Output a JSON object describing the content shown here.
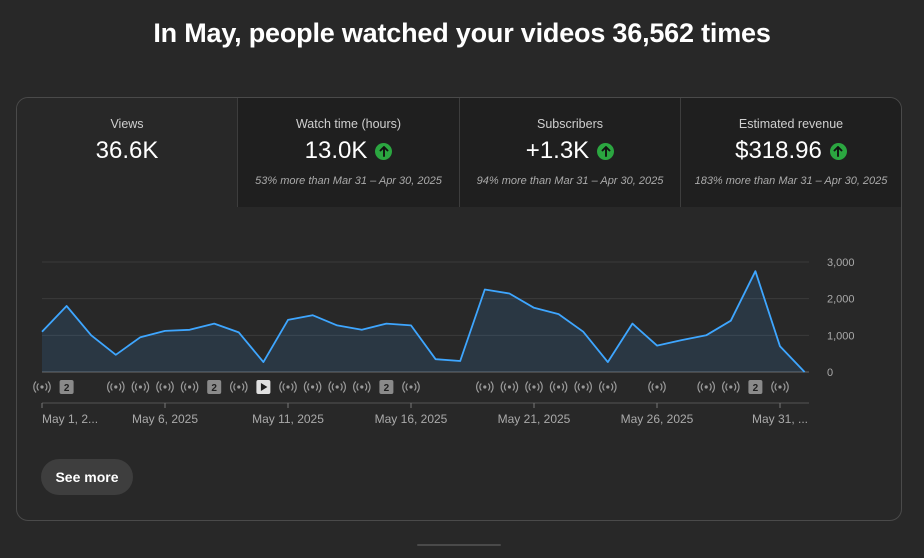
{
  "headline": "In May, people watched your videos 36,562 times",
  "metrics": [
    {
      "label": "Views",
      "value": "36.6K",
      "up": false,
      "compare": ""
    },
    {
      "label": "Watch time (hours)",
      "value": "13.0K",
      "up": true,
      "compare": "53% more than Mar 31 – Apr 30, 2025"
    },
    {
      "label": "Subscribers",
      "value": "+1.3K",
      "up": true,
      "compare": "94% more than Mar 31 – Apr 30, 2025"
    },
    {
      "label": "Estimated revenue",
      "value": "$318.96",
      "up": true,
      "compare": "183% more than Mar 31 – Apr 30, 2025"
    }
  ],
  "see_more_label": "See more",
  "colors": {
    "line": "#3ea6ff",
    "up_badge": "#2ba640"
  },
  "chart_data": {
    "type": "area",
    "title": "",
    "xlabel": "",
    "ylabel": "",
    "ylim": [
      0,
      3000
    ],
    "y_ticks": [
      0,
      1000,
      2000,
      3000
    ],
    "y_tick_labels": [
      "0",
      "1,000",
      "2,000",
      "3,000"
    ],
    "grid": true,
    "x_tick_labels": [
      {
        "day": 1,
        "label": "May 1, 2..."
      },
      {
        "day": 6,
        "label": "May 6, 2025"
      },
      {
        "day": 11,
        "label": "May 11, 2025"
      },
      {
        "day": 16,
        "label": "May 16, 2025"
      },
      {
        "day": 21,
        "label": "May 21, 2025"
      },
      {
        "day": 26,
        "label": "May 26, 2025"
      },
      {
        "day": 31,
        "label": "May 31, ..."
      }
    ],
    "series": [
      {
        "x": [
          "May 1, 2025",
          "May 2, 2025",
          "May 3, 2025",
          "May 4, 2025",
          "May 5, 2025",
          "May 6, 2025",
          "May 7, 2025",
          "May 8, 2025",
          "May 9, 2025",
          "May 10, 2025",
          "May 11, 2025",
          "May 12, 2025",
          "May 13, 2025",
          "May 14, 2025",
          "May 15, 2025",
          "May 16, 2025",
          "May 17, 2025",
          "May 18, 2025",
          "May 19, 2025",
          "May 20, 2025",
          "May 21, 2025",
          "May 22, 2025",
          "May 23, 2025",
          "May 24, 2025",
          "May 25, 2025",
          "May 26, 2025",
          "May 27, 2025",
          "May 28, 2025",
          "May 29, 2025",
          "May 30, 2025",
          "May 31, 2025",
          "Jun 1, 2025"
        ],
        "values": [
          1100,
          1800,
          1000,
          470,
          950,
          1120,
          1150,
          1320,
          1080,
          270,
          1420,
          1550,
          1270,
          1150,
          1320,
          1270,
          350,
          300,
          2250,
          2140,
          1750,
          1580,
          1100,
          270,
          1320,
          720,
          870,
          1000,
          1400,
          2750,
          700,
          0
        ]
      }
    ],
    "markers": [
      {
        "day": 1,
        "kind": "live"
      },
      {
        "day": 2,
        "kind": "count",
        "label": "2"
      },
      {
        "day": 4,
        "kind": "live"
      },
      {
        "day": 5,
        "kind": "live"
      },
      {
        "day": 6,
        "kind": "live"
      },
      {
        "day": 7,
        "kind": "live"
      },
      {
        "day": 8,
        "kind": "count",
        "label": "2"
      },
      {
        "day": 9,
        "kind": "live"
      },
      {
        "day": 10,
        "kind": "video"
      },
      {
        "day": 11,
        "kind": "live"
      },
      {
        "day": 12,
        "kind": "live"
      },
      {
        "day": 13,
        "kind": "live"
      },
      {
        "day": 14,
        "kind": "live"
      },
      {
        "day": 15,
        "kind": "count",
        "label": "2"
      },
      {
        "day": 16,
        "kind": "live"
      },
      {
        "day": 19,
        "kind": "live"
      },
      {
        "day": 20,
        "kind": "live"
      },
      {
        "day": 21,
        "kind": "live"
      },
      {
        "day": 22,
        "kind": "live"
      },
      {
        "day": 23,
        "kind": "live"
      },
      {
        "day": 24,
        "kind": "live"
      },
      {
        "day": 26,
        "kind": "live"
      },
      {
        "day": 28,
        "kind": "live"
      },
      {
        "day": 29,
        "kind": "live"
      },
      {
        "day": 30,
        "kind": "count",
        "label": "2"
      },
      {
        "day": 31,
        "kind": "live"
      }
    ]
  }
}
